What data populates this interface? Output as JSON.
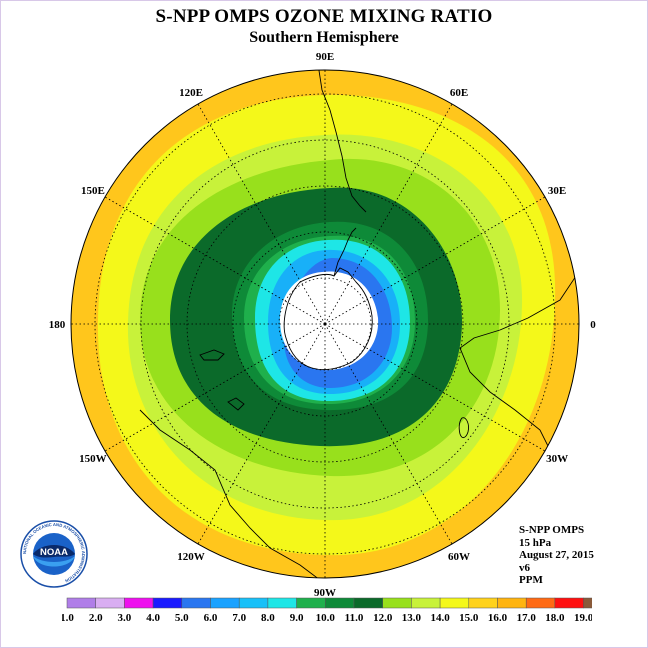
{
  "title": "S-NPP OMPS OZONE MIXING RATIO",
  "subtitle": "Southern Hemisphere",
  "logo": {
    "text": "NOAA",
    "ring_text": "NATIONAL OCEANIC AND ATMOSPHERIC ADMINISTRATION"
  },
  "info": {
    "instrument": "S-NPP OMPS",
    "level": "15 hPa",
    "date": "August 27, 2015",
    "version": "v6",
    "units": "PPM"
  },
  "longitude_labels": [
    {
      "text": "90W",
      "lon": -90
    },
    {
      "text": "60W",
      "lon": -60
    },
    {
      "text": "30W",
      "lon": -30
    },
    {
      "text": "0",
      "lon": 0
    },
    {
      "text": "30E",
      "lon": 30
    },
    {
      "text": "60E",
      "lon": 60
    },
    {
      "text": "90E",
      "lon": 90
    },
    {
      "text": "120E",
      "lon": 120
    },
    {
      "text": "150E",
      "lon": 150
    },
    {
      "text": "180",
      "lon": 180
    },
    {
      "text": "150W",
      "lon": -150
    },
    {
      "text": "120W",
      "lon": -120
    }
  ],
  "colorbar": {
    "labels": [
      "1.0",
      "2.0",
      "3.0",
      "4.0",
      "5.0",
      "6.0",
      "7.0",
      "8.0",
      "9.0",
      "10.0",
      "11.0",
      "12.0",
      "13.0",
      "14.0",
      "15.0",
      "16.0",
      "17.0",
      "18.0",
      "19.0"
    ],
    "colors": [
      "#b07ee8",
      "#d9aef2",
      "#ee10ee",
      "#1a1aff",
      "#2a76f0",
      "#1aa2ff",
      "#18c0f8",
      "#1ee6e6",
      "#1fb04c",
      "#0e8a38",
      "#0b6a2a",
      "#98e01c",
      "#c8f23a",
      "#f4f81a",
      "#ffd21c",
      "#ffb410",
      "#ff6a14",
      "#ff1010",
      "#8a5a3a"
    ]
  },
  "chart_data": {
    "type": "heatmap",
    "projection": "south polar stereographic",
    "quantity": "ozone mixing ratio",
    "units": "PPM",
    "level": "15 hPa",
    "date": "August 27, 2015",
    "color_levels": [
      1.0,
      2.0,
      3.0,
      4.0,
      5.0,
      6.0,
      7.0,
      8.0,
      9.0,
      10.0,
      11.0,
      12.0,
      13.0,
      14.0,
      15.0,
      16.0,
      17.0,
      18.0,
      19.0
    ],
    "bands_outer_to_inner": [
      {
        "range": [
          15.0,
          16.0
        ],
        "color": "#ffd21c"
      },
      {
        "range": [
          14.0,
          15.0
        ],
        "color": "#f4f81a"
      },
      {
        "range": [
          13.0,
          14.0
        ],
        "color": "#c8f23a"
      },
      {
        "range": [
          12.0,
          13.0
        ],
        "color": "#98e01c"
      },
      {
        "range": [
          11.0,
          12.0
        ],
        "color": "#0b6a2a"
      },
      {
        "range": [
          10.0,
          11.0
        ],
        "color": "#0e8a38"
      },
      {
        "range": [
          9.0,
          10.0
        ],
        "color": "#1fb04c"
      },
      {
        "range": [
          8.0,
          9.0
        ],
        "color": "#1ee6e6"
      },
      {
        "range": [
          6.0,
          8.0
        ],
        "color": "#18b0f8"
      },
      {
        "range": [
          5.0,
          6.0
        ],
        "color": "#2a76f0"
      }
    ],
    "no_data_region": "polar night (white)"
  }
}
